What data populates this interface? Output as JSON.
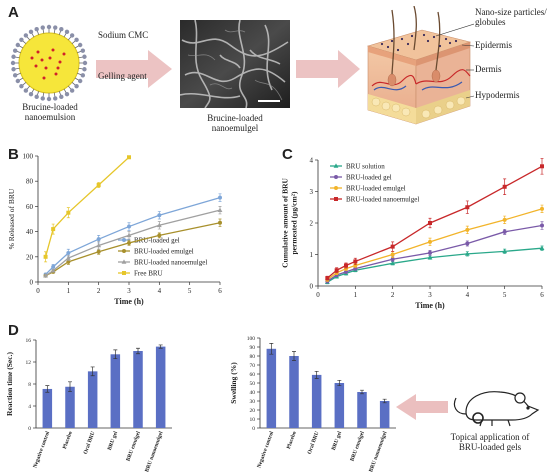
{
  "panels": {
    "a": {
      "letter": "A",
      "droplet_caption": "Brucine-loaded\nnanoemulsion",
      "arrow_text_1": "Sodium CMC",
      "arrow_text_2": "Gelling agent",
      "micrograph_caption": "Brucine-loaded\nnanoemulgel",
      "skin_labels": [
        "Nano-size particles/\nglobules",
        "Epidermis",
        "Dermis",
        "Hypodermis"
      ]
    },
    "b": {
      "letter": "B"
    },
    "c": {
      "letter": "C"
    },
    "d": {
      "letter": "D",
      "mouse_caption": "Topical application of\nBRU-loaded gels"
    }
  },
  "chart_data": [
    {
      "id": "B",
      "type": "line",
      "ylabel": "% Released of BRU",
      "xlabel": "Time (h)",
      "xlim": [
        0,
        6
      ],
      "ylim": [
        0,
        100
      ],
      "xticks": [
        0,
        1,
        2,
        3,
        4,
        5,
        6
      ],
      "yticks": [
        0,
        20,
        40,
        60,
        80,
        100
      ],
      "legend_position": "lower-right",
      "series": [
        {
          "name": "BRU-loaded gel",
          "color": "#7ea6d8",
          "marker": "circle",
          "x": [
            0.25,
            0.5,
            1,
            2,
            3,
            4,
            6
          ],
          "y": [
            6,
            12,
            23,
            34,
            44,
            53,
            67
          ],
          "err": [
            1,
            2,
            3,
            3,
            3,
            3,
            3
          ]
        },
        {
          "name": "BRU-loaded emulgel",
          "color": "#a8902c",
          "marker": "circle",
          "x": [
            0.25,
            0.5,
            1,
            2,
            3,
            4,
            6
          ],
          "y": [
            5,
            8,
            16,
            24,
            31,
            37,
            47
          ],
          "err": [
            1,
            1,
            2,
            2,
            2,
            2,
            3
          ]
        },
        {
          "name": "BRU-loaded nanoemulgel",
          "color": "#a0a0a0",
          "marker": "triangle",
          "x": [
            0.25,
            0.5,
            1,
            2,
            3,
            4,
            6
          ],
          "y": [
            5,
            9,
            19,
            29,
            37,
            45,
            57
          ],
          "err": [
            1,
            1,
            2,
            3,
            3,
            3,
            3
          ]
        },
        {
          "name": "Free BRU",
          "color": "#e6c62a",
          "marker": "square",
          "x": [
            0.25,
            0.5,
            1,
            2,
            3
          ],
          "y": [
            20,
            42,
            55,
            77,
            99
          ],
          "err": [
            4,
            4,
            4,
            2,
            1
          ]
        }
      ]
    },
    {
      "id": "C",
      "type": "line",
      "ylabel": "Cumulative amount of BRU\npermeated (µg/cm²)",
      "xlabel": "Time (h)",
      "xlim": [
        0,
        6
      ],
      "ylim": [
        0,
        4
      ],
      "xticks": [
        0,
        1,
        2,
        3,
        4,
        5,
        6
      ],
      "yticks": [
        0,
        1,
        2,
        3,
        4
      ],
      "legend_position": "top-left",
      "series": [
        {
          "name": "BRU solution",
          "color": "#2aa88a",
          "marker": "triangle",
          "x": [
            0.25,
            0.5,
            0.75,
            1,
            2,
            3,
            4,
            5,
            6
          ],
          "y": [
            0.12,
            0.3,
            0.4,
            0.5,
            0.72,
            0.9,
            1.02,
            1.1,
            1.2
          ],
          "err": [
            0.05,
            0.05,
            0.05,
            0.05,
            0.05,
            0.05,
            0.07,
            0.07,
            0.07
          ]
        },
        {
          "name": "BRU-loaded gel",
          "color": "#7a5aa8",
          "marker": "circle",
          "x": [
            0.25,
            0.5,
            0.75,
            1,
            2,
            3,
            4,
            5,
            6
          ],
          "y": [
            0.15,
            0.35,
            0.45,
            0.55,
            0.85,
            1.05,
            1.35,
            1.72,
            1.92
          ],
          "err": [
            0.05,
            0.05,
            0.05,
            0.05,
            0.07,
            0.08,
            0.08,
            0.08,
            0.12
          ]
        },
        {
          "name": "BRU-loaded emulgel",
          "color": "#f2b42a",
          "marker": "circle",
          "x": [
            0.25,
            0.5,
            0.75,
            1,
            2,
            3,
            4,
            5,
            6
          ],
          "y": [
            0.2,
            0.42,
            0.55,
            0.65,
            1.0,
            1.4,
            1.78,
            2.1,
            2.45
          ],
          "err": [
            0.05,
            0.06,
            0.06,
            0.06,
            0.1,
            0.12,
            0.12,
            0.12,
            0.12
          ]
        },
        {
          "name": "BRU-loaded nanoemulgel",
          "color": "#c8282a",
          "marker": "square",
          "x": [
            0.25,
            0.5,
            0.75,
            1,
            2,
            3,
            4,
            5,
            6
          ],
          "y": [
            0.25,
            0.5,
            0.65,
            0.78,
            1.25,
            2.0,
            2.5,
            3.15,
            3.8
          ],
          "err": [
            0.06,
            0.08,
            0.08,
            0.1,
            0.15,
            0.15,
            0.2,
            0.25,
            0.25
          ]
        }
      ]
    },
    {
      "id": "D1",
      "type": "bar",
      "ylabel": "Reaction time (Sec.)",
      "ylim": [
        0,
        16
      ],
      "yticks": [
        0,
        4,
        8,
        12,
        16
      ],
      "color": "#5a6fc4",
      "categories": [
        "Negative control",
        "Placebo",
        "Oral BRU",
        "BRU gel",
        "BRU emulgel",
        "BRU nanoemulgel"
      ],
      "values": [
        7.1,
        7.5,
        10.3,
        13.4,
        14.0,
        14.8
      ],
      "err": [
        0.6,
        0.9,
        0.8,
        0.8,
        0.5,
        0.3
      ]
    },
    {
      "id": "D2",
      "type": "bar",
      "ylabel": "Swelling (%)",
      "ylim": [
        0,
        100
      ],
      "yticks": [
        0,
        10,
        20,
        30,
        40,
        50,
        60,
        70,
        80,
        90,
        100
      ],
      "color": "#5a6fc4",
      "categories": [
        "Negative control",
        "Placebo",
        "Oral BRU",
        "BRU gel",
        "BRU emulgel",
        "BRU nanoemulgel"
      ],
      "values": [
        88,
        80,
        59,
        50,
        40,
        30
      ],
      "err": [
        6,
        5,
        4,
        3,
        2,
        2
      ]
    }
  ]
}
